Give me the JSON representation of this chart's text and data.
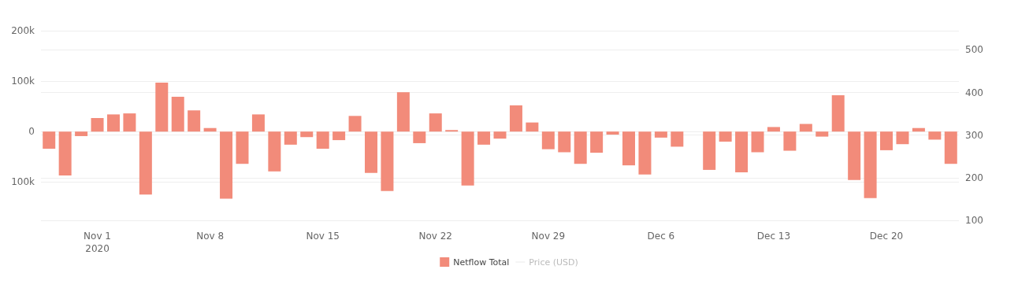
{
  "chart_data": {
    "type": "bar",
    "x": [
      "2020-10-29",
      "2020-10-30",
      "2020-10-31",
      "2020-11-01",
      "2020-11-02",
      "2020-11-03",
      "2020-11-04",
      "2020-11-05",
      "2020-11-06",
      "2020-11-07",
      "2020-11-08",
      "2020-11-09",
      "2020-11-10",
      "2020-11-11",
      "2020-11-12",
      "2020-11-13",
      "2020-11-14",
      "2020-11-15",
      "2020-11-16",
      "2020-11-17",
      "2020-11-18",
      "2020-11-19",
      "2020-11-20",
      "2020-11-21",
      "2020-11-22",
      "2020-11-23",
      "2020-11-24",
      "2020-11-25",
      "2020-11-26",
      "2020-11-27",
      "2020-11-28",
      "2020-11-29",
      "2020-11-30",
      "2020-12-01",
      "2020-12-02",
      "2020-12-03",
      "2020-12-04",
      "2020-12-05",
      "2020-12-06",
      "2020-12-07",
      "2020-12-08",
      "2020-12-09",
      "2020-12-10",
      "2020-12-11",
      "2020-12-12",
      "2020-12-13",
      "2020-12-14",
      "2020-12-15",
      "2020-12-16",
      "2020-12-17",
      "2020-12-18",
      "2020-12-19",
      "2020-12-20",
      "2020-12-21",
      "2020-12-22",
      "2020-12-23",
      "2020-12-24"
    ],
    "series": [
      {
        "name": "Netflow Total",
        "color": "#f28b7a",
        "values": [
          -34000,
          -87000,
          -9000,
          27000,
          34000,
          36000,
          -125000,
          97000,
          69000,
          42000,
          7000,
          -133000,
          -64000,
          34000,
          -79000,
          -26000,
          -11000,
          -34000,
          -17000,
          31000,
          -82000,
          -118000,
          78000,
          -23000,
          36000,
          3000,
          -107000,
          -26000,
          -14000,
          52000,
          18000,
          -35000,
          -41000,
          -64000,
          -42000,
          -6000,
          -67000,
          -85000,
          -12000,
          -30000,
          0,
          -76000,
          -20000,
          -81000,
          -41000,
          9000,
          -38000,
          15000,
          -10000,
          72000,
          -96000,
          -132000,
          -37000,
          -25000,
          7000,
          -16000,
          -64000
        ]
      },
      {
        "name": "Price (USD)",
        "type": "line",
        "axis": "y2",
        "color": "#cccccc",
        "values": [
          null,
          null,
          null,
          null,
          null,
          null,
          null,
          null,
          null,
          null,
          null,
          null,
          null,
          null,
          null,
          null,
          null,
          null,
          null,
          null,
          null,
          null,
          null,
          null,
          null,
          null,
          null,
          null,
          null,
          null,
          null,
          null,
          null,
          null,
          null,
          null,
          null,
          null,
          null,
          null,
          null,
          null,
          null,
          null,
          null,
          null,
          null,
          null,
          null,
          null,
          null,
          null,
          null,
          null,
          null,
          null,
          null
        ]
      }
    ],
    "xlim": [
      "2020-10-28T12:00",
      "2020-12-24T12:00"
    ],
    "xticks": [
      {
        "value": "2020-11-01",
        "label": "Nov 1\n2020"
      },
      {
        "value": "2020-11-08",
        "label": "Nov 8"
      },
      {
        "value": "2020-11-15",
        "label": "Nov 15"
      },
      {
        "value": "2020-11-22",
        "label": "Nov 22"
      },
      {
        "value": "2020-11-29",
        "label": "Nov 29"
      },
      {
        "value": "2020-12-06",
        "label": "Dec 6"
      },
      {
        "value": "2020-12-13",
        "label": "Dec 13"
      },
      {
        "value": "2020-12-20",
        "label": "Dec 20"
      }
    ],
    "ylim": [
      -176000,
      200000
    ],
    "yticks": [
      {
        "value": -100000,
        "label": "100k"
      },
      {
        "value": 0,
        "label": "0"
      },
      {
        "value": 100000,
        "label": "100k"
      },
      {
        "value": 200000,
        "label": "200k"
      }
    ],
    "y2lim": [
      100,
      545
    ],
    "y2ticks": [
      100,
      200,
      300,
      400,
      500
    ],
    "grid": "y",
    "legend": "bottom"
  }
}
